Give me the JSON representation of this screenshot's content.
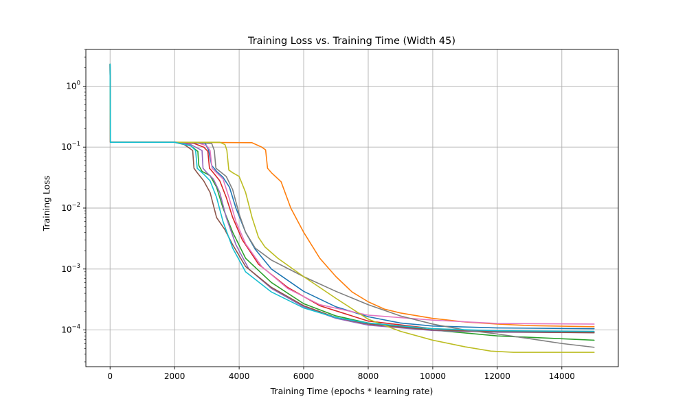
{
  "chart_data": {
    "type": "line",
    "title": "Training Loss vs. Training Time (Width 45)",
    "xlabel": "Training Time (epochs * learning rate)",
    "ylabel": "Training Loss",
    "xlim": [
      -750,
      15750
    ],
    "ylim": [
      2.5e-05,
      4.0
    ],
    "yscale": "log",
    "grid": true,
    "x_ticks": [
      0,
      2000,
      4000,
      6000,
      8000,
      10000,
      12000,
      14000
    ],
    "x_tick_labels": [
      "0",
      "2000",
      "4000",
      "6000",
      "8000",
      "10000",
      "12000",
      "14000"
    ],
    "y_ticks": [
      0.0001,
      0.001,
      0.01,
      0.1,
      1
    ],
    "y_tick_labels": [
      "10",
      "10",
      "10",
      "10",
      "10"
    ],
    "y_tick_exponents": [
      "−4",
      "−3",
      "−2",
      "−1",
      "0"
    ],
    "colors": [
      "#1f77b4",
      "#ff7f0e",
      "#2ca02c",
      "#d62728",
      "#9467bd",
      "#8c564b",
      "#e377c2",
      "#7f7f7f",
      "#bcbd22",
      "#17becf"
    ],
    "series": [
      {
        "color": "#1f77b4",
        "points": [
          [
            0,
            2.3
          ],
          [
            10,
            0.12
          ],
          [
            2000,
            0.12
          ],
          [
            2950,
            0.115
          ],
          [
            3050,
            0.09
          ],
          [
            3150,
            0.05
          ],
          [
            3300,
            0.04
          ],
          [
            3500,
            0.032
          ],
          [
            3700,
            0.022
          ],
          [
            3900,
            0.01
          ],
          [
            4200,
            0.004
          ],
          [
            4500,
            0.0021
          ],
          [
            5000,
            0.001
          ],
          [
            6000,
            0.00043
          ],
          [
            7000,
            0.00024
          ],
          [
            8000,
            0.000165
          ],
          [
            9000,
            0.00013
          ],
          [
            10000,
            0.000116
          ],
          [
            12000,
            0.000108
          ],
          [
            15000,
            0.000105
          ]
        ]
      },
      {
        "color": "#ff7f0e",
        "points": [
          [
            0,
            2.3
          ],
          [
            10,
            0.12
          ],
          [
            2000,
            0.12
          ],
          [
            4400,
            0.118
          ],
          [
            4700,
            0.1
          ],
          [
            4820,
            0.09
          ],
          [
            4880,
            0.045
          ],
          [
            5000,
            0.038
          ],
          [
            5300,
            0.027
          ],
          [
            5600,
            0.01
          ],
          [
            6000,
            0.004
          ],
          [
            6500,
            0.0015
          ],
          [
            7000,
            0.00075
          ],
          [
            7500,
            0.00042
          ],
          [
            8000,
            0.00029
          ],
          [
            8500,
            0.00022
          ],
          [
            9000,
            0.00019
          ],
          [
            10000,
            0.000155
          ],
          [
            11000,
            0.000135
          ],
          [
            12000,
            0.000125
          ],
          [
            13000,
            0.000118
          ],
          [
            15000,
            0.000113
          ]
        ]
      },
      {
        "color": "#2ca02c",
        "points": [
          [
            0,
            2.3
          ],
          [
            10,
            0.12
          ],
          [
            2000,
            0.12
          ],
          [
            2500,
            0.105
          ],
          [
            2720,
            0.085
          ],
          [
            2750,
            0.05
          ],
          [
            2850,
            0.04
          ],
          [
            3100,
            0.034
          ],
          [
            3300,
            0.022
          ],
          [
            3500,
            0.01
          ],
          [
            3800,
            0.004
          ],
          [
            4200,
            0.0015
          ],
          [
            5000,
            0.0006
          ],
          [
            6000,
            0.00027
          ],
          [
            7000,
            0.00017
          ],
          [
            8000,
            0.00013
          ],
          [
            10000,
            0.0001
          ],
          [
            12000,
            8e-05
          ],
          [
            15000,
            6.8e-05
          ]
        ]
      },
      {
        "color": "#d62728",
        "points": [
          [
            0,
            2.3
          ],
          [
            10,
            0.12
          ],
          [
            2000,
            0.12
          ],
          [
            2600,
            0.115
          ],
          [
            2900,
            0.1
          ],
          [
            3030,
            0.085
          ],
          [
            3080,
            0.045
          ],
          [
            3200,
            0.038
          ],
          [
            3400,
            0.028
          ],
          [
            3600,
            0.015
          ],
          [
            3800,
            0.007
          ],
          [
            4100,
            0.003
          ],
          [
            4600,
            0.0012
          ],
          [
            5500,
            0.0005
          ],
          [
            6500,
            0.00025
          ],
          [
            8000,
            0.00014
          ],
          [
            10000,
            0.000105
          ],
          [
            12000,
            9.5e-05
          ],
          [
            15000,
            9.2e-05
          ]
        ]
      },
      {
        "color": "#9467bd",
        "points": [
          [
            0,
            2.3
          ],
          [
            10,
            0.12
          ],
          [
            2000,
            0.12
          ],
          [
            2500,
            0.11
          ],
          [
            2850,
            0.088
          ],
          [
            2880,
            0.045
          ],
          [
            3000,
            0.038
          ],
          [
            3200,
            0.03
          ],
          [
            3400,
            0.018
          ],
          [
            3600,
            0.007
          ],
          [
            3900,
            0.0025
          ],
          [
            4300,
            0.001
          ],
          [
            5000,
            0.00048
          ],
          [
            6000,
            0.00024
          ],
          [
            7000,
            0.000155
          ],
          [
            8000,
            0.00012
          ],
          [
            10000,
            9.8e-05
          ],
          [
            12000,
            9.2e-05
          ],
          [
            15000,
            9e-05
          ]
        ]
      },
      {
        "color": "#8c564b",
        "points": [
          [
            0,
            2.3
          ],
          [
            10,
            0.12
          ],
          [
            2000,
            0.12
          ],
          [
            2300,
            0.11
          ],
          [
            2560,
            0.088
          ],
          [
            2600,
            0.045
          ],
          [
            2700,
            0.038
          ],
          [
            2900,
            0.028
          ],
          [
            3100,
            0.018
          ],
          [
            3300,
            0.007
          ],
          [
            3550,
            0.0045
          ],
          [
            3800,
            0.0025
          ],
          [
            4200,
            0.0011
          ],
          [
            5000,
            0.0005
          ],
          [
            6000,
            0.00025
          ],
          [
            7000,
            0.00016
          ],
          [
            8000,
            0.000125
          ],
          [
            10000,
            0.0001
          ],
          [
            12000,
            9.4e-05
          ],
          [
            15000,
            9e-05
          ]
        ]
      },
      {
        "color": "#e377c2",
        "points": [
          [
            0,
            2.3
          ],
          [
            10,
            0.12
          ],
          [
            2000,
            0.12
          ],
          [
            2700,
            0.118
          ],
          [
            3000,
            0.105
          ],
          [
            3100,
            0.088
          ],
          [
            3160,
            0.045
          ],
          [
            3300,
            0.038
          ],
          [
            3500,
            0.03
          ],
          [
            3700,
            0.014
          ],
          [
            3900,
            0.006
          ],
          [
            4200,
            0.0026
          ],
          [
            4700,
            0.0011
          ],
          [
            5500,
            0.00048
          ],
          [
            6500,
            0.00026
          ],
          [
            8000,
            0.000175
          ],
          [
            10000,
            0.000145
          ],
          [
            12000,
            0.000128
          ],
          [
            15000,
            0.000125
          ]
        ]
      },
      {
        "color": "#7f7f7f",
        "points": [
          [
            0,
            2.3
          ],
          [
            10,
            0.12
          ],
          [
            2000,
            0.12
          ],
          [
            3150,
            0.115
          ],
          [
            3230,
            0.088
          ],
          [
            3280,
            0.045
          ],
          [
            3400,
            0.04
          ],
          [
            3600,
            0.033
          ],
          [
            3800,
            0.02
          ],
          [
            4000,
            0.008
          ],
          [
            4200,
            0.004
          ],
          [
            4500,
            0.0022
          ],
          [
            5000,
            0.0014
          ],
          [
            6000,
            0.00075
          ],
          [
            7000,
            0.00043
          ],
          [
            8000,
            0.00026
          ],
          [
            9000,
            0.00017
          ],
          [
            10000,
            0.000125
          ],
          [
            11000,
            0.0001
          ],
          [
            12000,
            8.6e-05
          ],
          [
            13000,
            7.2e-05
          ],
          [
            14000,
            6e-05
          ],
          [
            15000,
            5.2e-05
          ]
        ]
      },
      {
        "color": "#bcbd22",
        "points": [
          [
            0,
            2.3
          ],
          [
            10,
            0.12
          ],
          [
            2000,
            0.12
          ],
          [
            3400,
            0.12
          ],
          [
            3560,
            0.11
          ],
          [
            3620,
            0.088
          ],
          [
            3680,
            0.042
          ],
          [
            3800,
            0.038
          ],
          [
            4000,
            0.033
          ],
          [
            4200,
            0.018
          ],
          [
            4400,
            0.007
          ],
          [
            4600,
            0.0033
          ],
          [
            4800,
            0.0023
          ],
          [
            5200,
            0.0015
          ],
          [
            6000,
            0.00075
          ],
          [
            7000,
            0.00033
          ],
          [
            8000,
            0.00015
          ],
          [
            9000,
            9.5e-05
          ],
          [
            10000,
            6.8e-05
          ],
          [
            11000,
            5.3e-05
          ],
          [
            11800,
            4.5e-05
          ],
          [
            12500,
            4.3e-05
          ],
          [
            15000,
            4.3e-05
          ]
        ]
      },
      {
        "color": "#17becf",
        "points": [
          [
            0,
            2.3
          ],
          [
            10,
            0.12
          ],
          [
            2000,
            0.12
          ],
          [
            2500,
            0.105
          ],
          [
            2650,
            0.088
          ],
          [
            2700,
            0.045
          ],
          [
            2900,
            0.036
          ],
          [
            3100,
            0.028
          ],
          [
            3300,
            0.015
          ],
          [
            3500,
            0.006
          ],
          [
            3800,
            0.0022
          ],
          [
            4200,
            0.0009
          ],
          [
            5000,
            0.00042
          ],
          [
            6000,
            0.00023
          ],
          [
            7000,
            0.00016
          ],
          [
            8000,
            0.00013
          ],
          [
            10000,
            0.000105
          ],
          [
            12000,
            9.7e-05
          ],
          [
            15000,
            9.5e-05
          ]
        ]
      }
    ]
  }
}
